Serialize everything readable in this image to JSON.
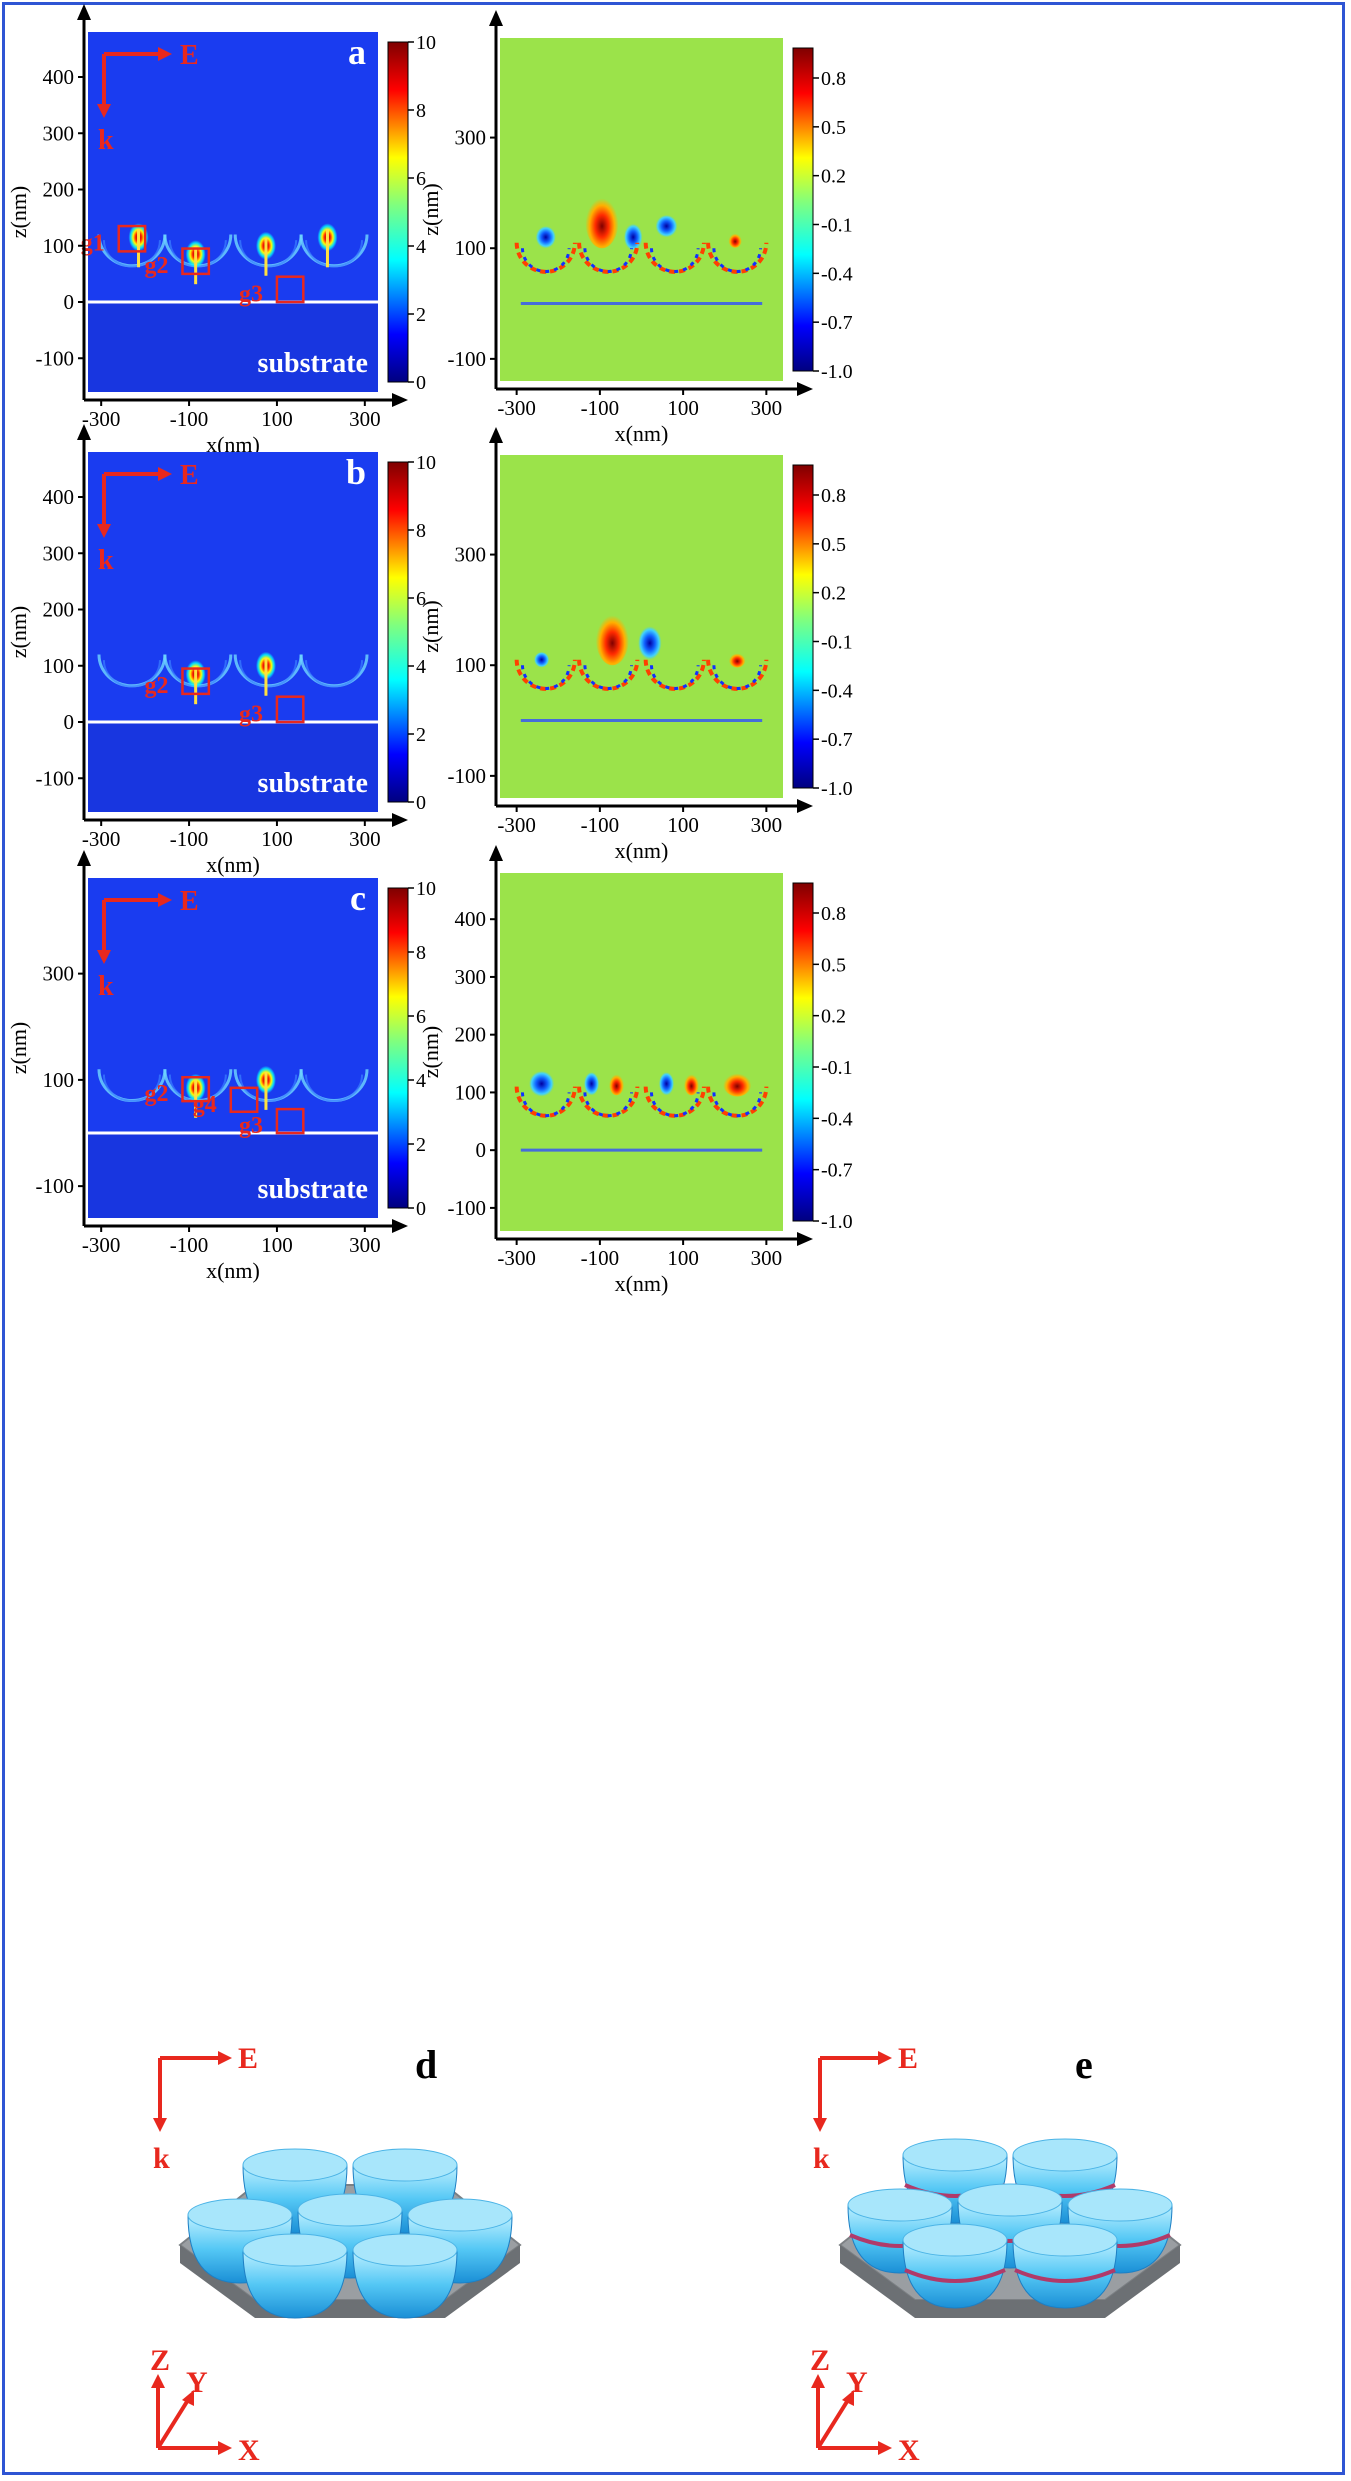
{
  "figure": {
    "border_color": "#2f55d4",
    "panel_letters": [
      "a",
      "b",
      "c",
      "d",
      "e"
    ],
    "x_label": "x(nm)",
    "z_label": "z(nm)",
    "substrate_label": "substrate",
    "field_E": "E",
    "wave_k": "k",
    "axis_X": "X",
    "axis_Y": "Y",
    "axis_Z": "Z",
    "gap_labels": [
      "g1",
      "g2",
      "g3",
      "g4"
    ],
    "annotation_color": "#e8281e"
  },
  "chart_data": [
    {
      "id": "a-left",
      "type": "heatmap",
      "panel": "a",
      "quantity": "field enhancement",
      "xlabel": "x(nm)",
      "ylabel": "z(nm)",
      "xticks": [
        "-300",
        "-100",
        "100",
        "300"
      ],
      "yticks": [
        "400",
        "300",
        "200",
        "100",
        "0",
        "-100"
      ],
      "xlim": [
        -330,
        330
      ],
      "ylim": [
        -160,
        480
      ],
      "colorbar": {
        "ticks": [
          "10",
          "8",
          "6",
          "4",
          "2",
          "0"
        ],
        "range": [
          0,
          10
        ],
        "colors": [
          "#00007f",
          "#0000ff",
          "#00ffff",
          "#7fff7f",
          "#ffff00",
          "#ff0000",
          "#7f0000"
        ]
      },
      "background": "#1a3cf0",
      "substrate": true,
      "hot_spots": [
        {
          "x": -215,
          "z": 115
        },
        {
          "x": -85,
          "z": 85
        },
        {
          "x": 75,
          "z": 100
        },
        {
          "x": 215,
          "z": 115
        }
      ],
      "gap_boxes": [
        {
          "label": "g1",
          "x0": -260,
          "x1": -200,
          "z0": 90,
          "z1": 135
        },
        {
          "label": "g2",
          "x0": -115,
          "x1": -55,
          "z0": 50,
          "z1": 95
        },
        {
          "label": "g3",
          "x0": 100,
          "x1": 160,
          "z0": 0,
          "z1": 45
        }
      ]
    },
    {
      "id": "a-right",
      "type": "heatmap",
      "panel": "a",
      "quantity": "phase",
      "xlabel": "x(nm)",
      "ylabel": "z(nm)",
      "xticks": [
        "-300",
        "-100",
        "100",
        "300"
      ],
      "yticks": [
        "300",
        "100",
        "-100"
      ],
      "xlim": [
        -340,
        340
      ],
      "ylim": [
        -140,
        480
      ],
      "colorbar": {
        "ticks": [
          "0.8",
          "0.5",
          "0.2",
          "-0.1",
          "-0.4",
          "-0.7",
          "-1.0"
        ],
        "range": [
          -1.0,
          1.0
        ],
        "colors": [
          "#00007f",
          "#0000ff",
          "#00ffff",
          "#7fff7f",
          "#ffff00",
          "#ff0000",
          "#7f0000"
        ]
      },
      "background": "#9be34a"
    },
    {
      "id": "b-left",
      "type": "heatmap",
      "panel": "b",
      "quantity": "field enhancement",
      "xlabel": "x(nm)",
      "ylabel": "z(nm)",
      "xticks": [
        "-300",
        "-100",
        "100",
        "300"
      ],
      "yticks": [
        "400",
        "300",
        "200",
        "100",
        "0",
        "-100"
      ],
      "xlim": [
        -330,
        330
      ],
      "ylim": [
        -160,
        480
      ],
      "colorbar": {
        "ticks": [
          "10",
          "8",
          "6",
          "4",
          "2",
          "0"
        ],
        "range": [
          0,
          10
        ],
        "colors": [
          "#00007f",
          "#0000ff",
          "#00ffff",
          "#7fff7f",
          "#ffff00",
          "#ff0000",
          "#7f0000"
        ]
      },
      "background": "#1a3cf0",
      "substrate": true,
      "hot_spots": [
        {
          "x": -85,
          "z": 85
        },
        {
          "x": 75,
          "z": 100
        }
      ],
      "gap_boxes": [
        {
          "label": "g2",
          "x0": -115,
          "x1": -55,
          "z0": 50,
          "z1": 95
        },
        {
          "label": "g3",
          "x0": 100,
          "x1": 160,
          "z0": 0,
          "z1": 45
        }
      ]
    },
    {
      "id": "b-right",
      "type": "heatmap",
      "panel": "b",
      "quantity": "phase",
      "xlabel": "x(nm)",
      "ylabel": "z(nm)",
      "xticks": [
        "-300",
        "-100",
        "100",
        "300"
      ],
      "yticks": [
        "300",
        "100",
        "-100"
      ],
      "xlim": [
        -340,
        340
      ],
      "ylim": [
        -140,
        480
      ],
      "colorbar": {
        "ticks": [
          "0.8",
          "0.5",
          "0.2",
          "-0.1",
          "-0.4",
          "-0.7",
          "-1.0"
        ],
        "range": [
          -1.0,
          1.0
        ],
        "colors": [
          "#00007f",
          "#0000ff",
          "#00ffff",
          "#7fff7f",
          "#ffff00",
          "#ff0000",
          "#7f0000"
        ]
      },
      "background": "#9be34a"
    },
    {
      "id": "c-left",
      "type": "heatmap",
      "panel": "c",
      "quantity": "field enhancement",
      "xlabel": "x(nm)",
      "ylabel": "z(nm)",
      "xticks": [
        "-300",
        "-100",
        "100",
        "300"
      ],
      "yticks": [
        "300",
        "100",
        "-100"
      ],
      "xlim": [
        -330,
        330
      ],
      "ylim": [
        -160,
        480
      ],
      "colorbar": {
        "ticks": [
          "10",
          "8",
          "6",
          "4",
          "2",
          "0"
        ],
        "range": [
          0,
          10
        ],
        "colors": [
          "#00007f",
          "#0000ff",
          "#00ffff",
          "#7fff7f",
          "#ffff00",
          "#ff0000",
          "#7f0000"
        ]
      },
      "background": "#1a3cf0",
      "substrate": true,
      "hot_spots": [
        {
          "x": -85,
          "z": 85
        },
        {
          "x": 75,
          "z": 100
        }
      ],
      "gap_boxes": [
        {
          "label": "g2",
          "x0": -115,
          "x1": -55,
          "z0": 60,
          "z1": 105
        },
        {
          "label": "g4",
          "x0": -5,
          "x1": 55,
          "z0": 40,
          "z1": 85
        },
        {
          "label": "g3",
          "x0": 100,
          "x1": 160,
          "z0": 0,
          "z1": 45
        }
      ]
    },
    {
      "id": "c-right",
      "type": "heatmap",
      "panel": "c",
      "quantity": "phase",
      "xlabel": "x(nm)",
      "ylabel": "z(nm)",
      "xticks": [
        "-300",
        "-100",
        "100",
        "300"
      ],
      "yticks": [
        "400",
        "300",
        "200",
        "100",
        "0",
        "-100"
      ],
      "xlim": [
        -340,
        340
      ],
      "ylim": [
        -140,
        480
      ],
      "colorbar": {
        "ticks": [
          "0.8",
          "0.5",
          "0.2",
          "-0.1",
          "-0.4",
          "-0.7",
          "-1.0"
        ],
        "range": [
          -1.0,
          1.0
        ],
        "colors": [
          "#00007f",
          "#0000ff",
          "#00ffff",
          "#7fff7f",
          "#ffff00",
          "#ff0000",
          "#7f0000"
        ]
      },
      "background": "#9be34a"
    }
  ]
}
